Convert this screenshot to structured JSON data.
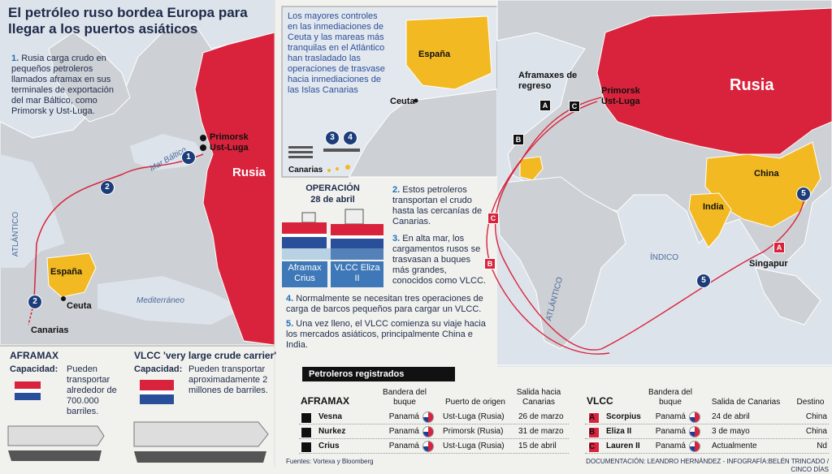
{
  "title": "El petróleo ruso bordea Europa para llegar a los puertos asiáticos",
  "steps": [
    {
      "number": "1.",
      "text": "Rusia carga crudo en pequeños petroleros llamados aframax en sus terminales de exportación del mar Báltico, como Primorsk y Ust-Luga."
    },
    {
      "number": "2.",
      "text": "Estos petroleros transportan el crudo hasta las cercanías de Canarias."
    },
    {
      "number": "3.",
      "text": "En alta mar, los cargamentos rusos se trasvasan a buques más grandes, conocidos como VLCC."
    },
    {
      "number": "4.",
      "text": "Normalmente se necesitan tres operaciones de carga de barcos pequeños para cargar un VLCC."
    },
    {
      "number": "5.",
      "text": "Una vez lleno, el VLCC comienza su viaje hacia los mercados asiáticos, principalmente China e India."
    }
  ],
  "left_map": {
    "primorsk": "Primorsk",
    "ust_luga": "Ust-Luga",
    "baltic": "Mar Báltico",
    "russia": "Rusia",
    "atlantic": "ATLÁNTICO",
    "spain": "España",
    "ceuta": "Ceuta",
    "canarias": "Canarias",
    "mediterranean": "Mediterráneo",
    "markers": [
      "1",
      "2",
      "2"
    ]
  },
  "inset": {
    "note": "Los mayores controles en las inmediaciones de Ceuta y las mareas más tranquilas en el Atlántico han trasladado las operaciones de trasvase hacia inmediaciones de las Islas Canarias",
    "spain": "España",
    "ceuta": "Ceuta",
    "canarias": "Canarias",
    "markers": [
      "3",
      "4"
    ]
  },
  "operation": {
    "title": "OPERACIÓN",
    "date": "28 de abril",
    "ships": [
      "Aframax Crius",
      "VLCC Eliza II"
    ]
  },
  "right_map": {
    "returning": "Aframaxes de regreso",
    "returning_markers": [
      "A",
      "C",
      "B"
    ],
    "primorsk": "Primorsk",
    "ust_luga": "Ust-Luga",
    "russia": "Rusia",
    "china": "China",
    "india": "India",
    "singapur": "Singapur",
    "indian_ocean": "ÍNDICO",
    "atlantic": "ATLÁNTICO",
    "vlcc_markers": [
      "C",
      "B",
      "A"
    ],
    "route_markers": [
      "5",
      "5"
    ]
  },
  "ships": {
    "aframax": {
      "name": "AFRAMAX",
      "capacity": "Capacidad:",
      "text": "Pueden transportar alrededor de 700.000 barriles."
    },
    "vlcc": {
      "name": "VLCC 'very large crude carrier'",
      "capacity": "Capacidad:",
      "text": "Pueden transportar aproximadamente 2 millones de barriles."
    }
  },
  "table": {
    "title": "Petroleros registrados",
    "aframax": {
      "headers": [
        "AFRAMAX",
        "Bandera del buque",
        "Puerto de origen",
        "Salida hacia Canarias"
      ],
      "rows": [
        [
          "A",
          "Vesna",
          "Panamá",
          "Ust-Luga (Rusia)",
          "26 de marzo"
        ],
        [
          "B",
          "Nurkez",
          "Panamá",
          "Primorsk (Rusia)",
          "31 de marzo"
        ],
        [
          "C",
          "Crius",
          "Panamá",
          "Ust-Luga (Rusia)",
          "15 de abril"
        ]
      ]
    },
    "vlcc": {
      "headers": [
        "VLCC",
        "Bandera del buque",
        "Salida de Canarias",
        "Destino"
      ],
      "rows": [
        [
          "A",
          "Scorpius",
          "Panamá",
          "24 de abril",
          "China"
        ],
        [
          "B",
          "Eliza II",
          "Panamá",
          "3 de mayo",
          "China"
        ],
        [
          "C",
          "Lauren II",
          "Panamá",
          "Actualmente",
          "Nd"
        ]
      ]
    }
  },
  "footer": {
    "sources": "Fuentes: Vortexa y  Bloomberg",
    "credits": "DOCUMENTACIÓN: LEANDRO HERNÁNDEZ - INFOGRAFÍA:BELÉN TRINCADO / CINCO DÍAS"
  }
}
